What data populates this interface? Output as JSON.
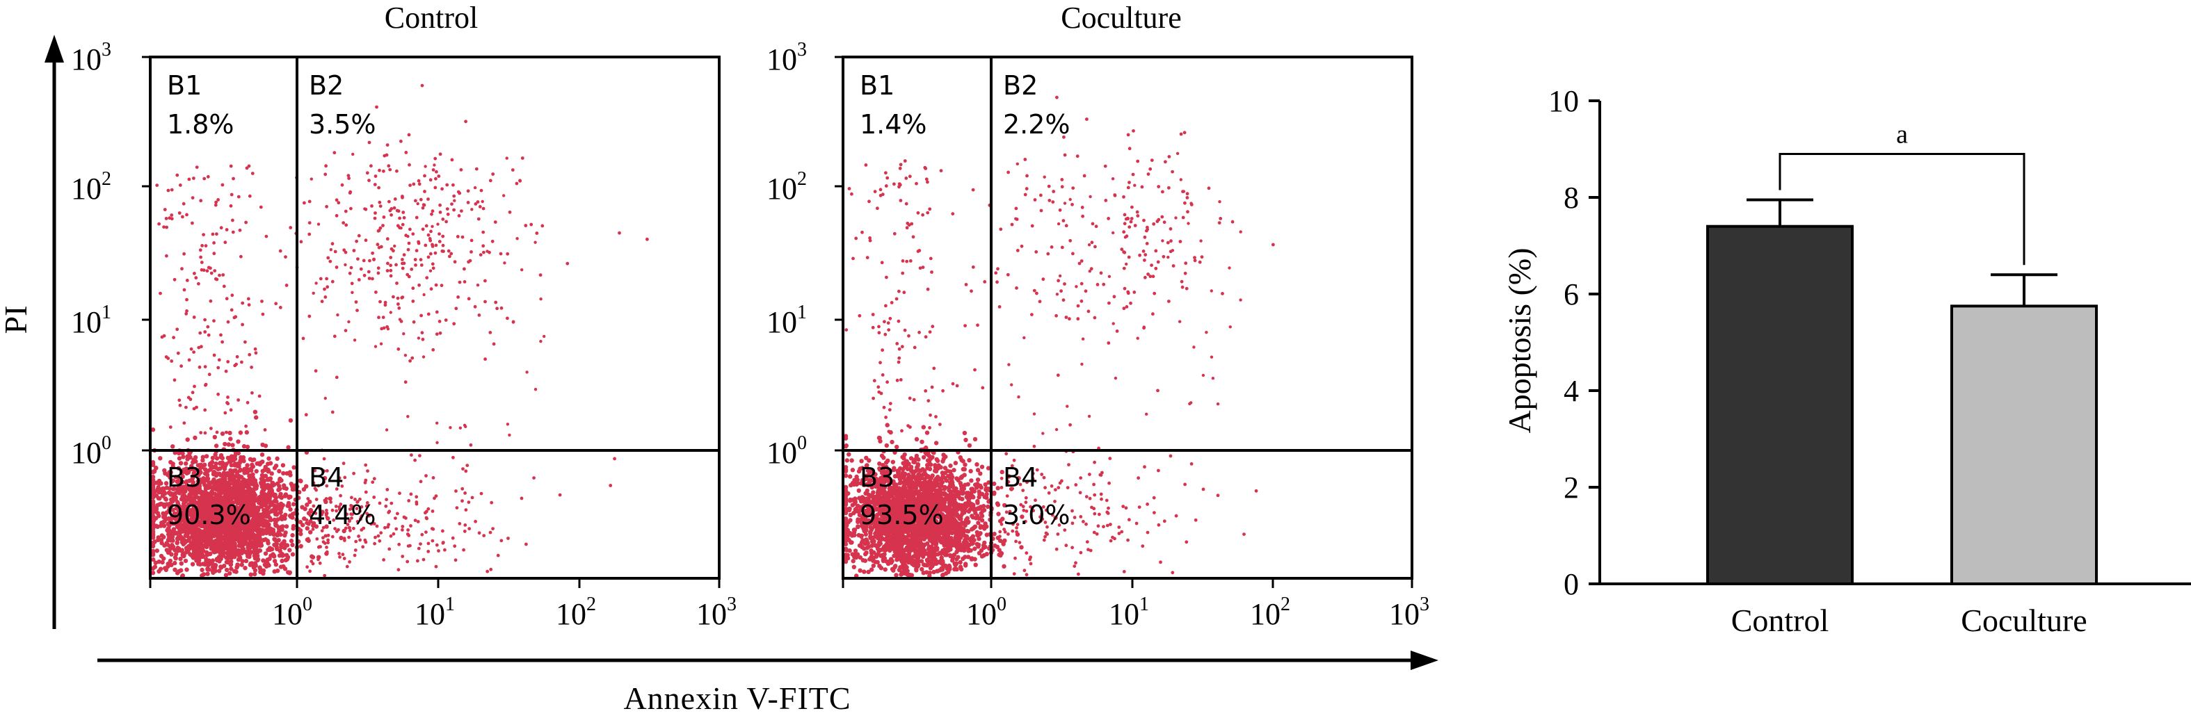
{
  "flow": {
    "y_label": "PI",
    "x_label": "Annexin V-FITC",
    "tick_base": "10",
    "tick_exponents": [
      "0",
      "1",
      "2",
      "3"
    ],
    "dot_color": "#d6334e",
    "panels": [
      {
        "title": "Control",
        "quadrants": [
          {
            "name": "B1",
            "percent": "1.8%"
          },
          {
            "name": "B2",
            "percent": "3.5%"
          },
          {
            "name": "B3",
            "percent": "90.3%"
          },
          {
            "name": "B4",
            "percent": "4.4%"
          }
        ]
      },
      {
        "title": "Coculture",
        "quadrants": [
          {
            "name": "B1",
            "percent": "1.4%"
          },
          {
            "name": "B2",
            "percent": "2.2%"
          },
          {
            "name": "B3",
            "percent": "93.5%"
          },
          {
            "name": "B4",
            "percent": "3.0%"
          }
        ]
      }
    ]
  },
  "chart_data": {
    "type": "bar",
    "categories": [
      "Control",
      "Coculture"
    ],
    "values": [
      7.4,
      5.75
    ],
    "errors": [
      0.55,
      0.65
    ],
    "colors": [
      "#333333",
      "#bdbdbd"
    ],
    "ylabel": "Apoptosis (%)",
    "xlabel": "",
    "ylim": [
      0,
      10
    ],
    "yticks": [
      "0",
      "2",
      "4",
      "6",
      "8",
      "10"
    ],
    "significance_label": "a",
    "grid": false
  }
}
